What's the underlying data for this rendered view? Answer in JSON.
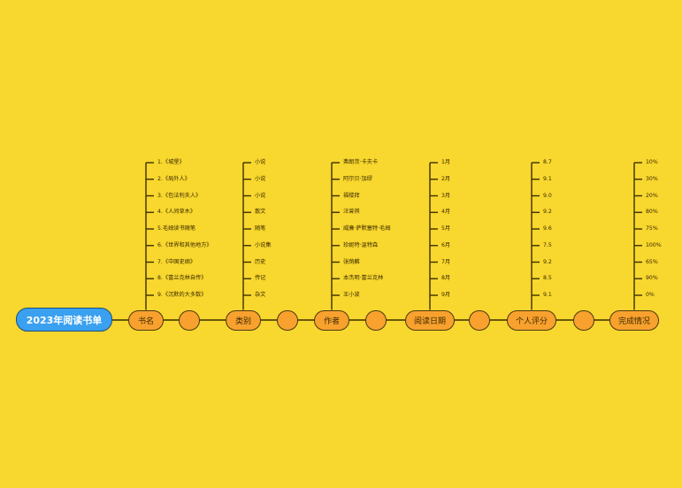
{
  "colors": {
    "background": "#F8D72E",
    "root_fill": "#3AA0F0",
    "node_fill": "#F9A12E",
    "line": "#3b3000"
  },
  "root": {
    "label": "2023年阅读书单"
  },
  "categories": [
    {
      "label": "书名",
      "items": [
        "1.《城堡》",
        "2.《局外人》",
        "3.《包法利夫人》",
        "4.《人间草木》",
        "5.毛姆读书随笔",
        "6.《世界和其他地方》",
        "7.《中国史纲》",
        "8.《富兰克林自传》",
        "9.《沉默的大多数》"
      ]
    },
    {
      "label": "类别",
      "items": [
        "小说",
        "小说",
        "小说",
        "散文",
        "随笔",
        "小说集",
        "历史",
        "传记",
        "杂文"
      ]
    },
    {
      "label": "作者",
      "items": [
        "弗朗茨·卡夫卡",
        "阿尔贝·加缪",
        "福楼拜",
        "汪曾祺",
        "威廉·萨默塞特·毛姆",
        "珍妮特·温特森",
        "张荫麟",
        "本杰明·富兰克林",
        "王小波"
      ]
    },
    {
      "label": "阅读日期",
      "items": [
        "1月",
        "2月",
        "3月",
        "4月",
        "5月",
        "6月",
        "7月",
        "8月",
        "9月"
      ]
    },
    {
      "label": "个人评分",
      "items": [
        "8.7",
        "9.1",
        "9.0",
        "9.2",
        "9.6",
        "7.5",
        "9.2",
        "8.5",
        "9.1"
      ]
    },
    {
      "label": "完成情况",
      "items": [
        "10%",
        "30%",
        "20%",
        "80%",
        "75%",
        "100%",
        "65%",
        "90%",
        "0%"
      ]
    }
  ]
}
